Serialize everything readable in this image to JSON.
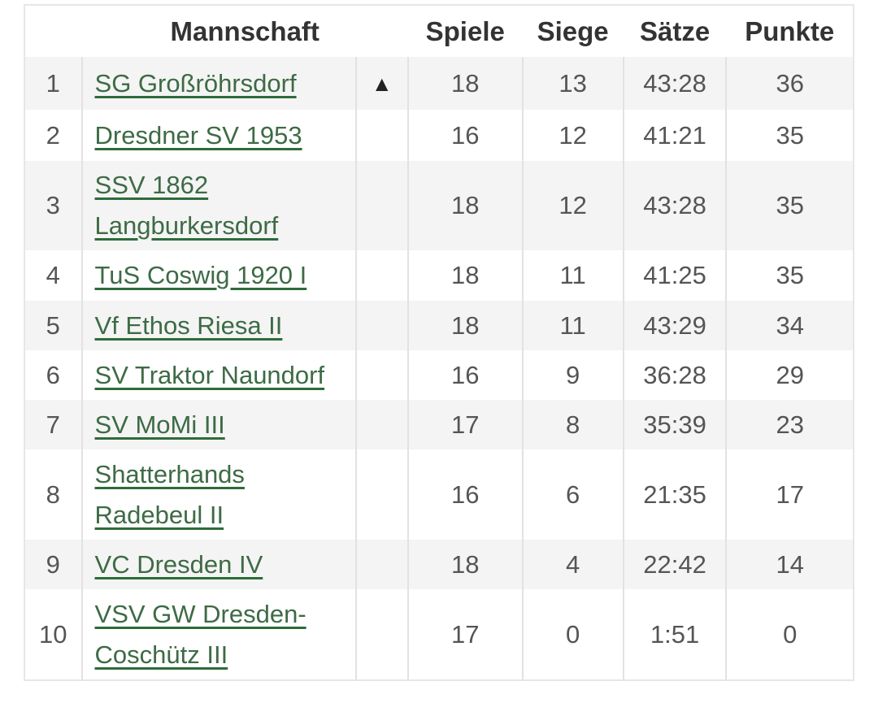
{
  "headers": {
    "rank": "",
    "team": "Mannschaft",
    "trend": "",
    "games": "Spiele",
    "wins": "Siege",
    "sets": "Sätze",
    "points": "Punkte"
  },
  "rows": [
    {
      "rank": "1",
      "team": "SG Großröhrsdorf",
      "trend": "▲",
      "games": "18",
      "wins": "13",
      "sets": "43:28",
      "points": "36"
    },
    {
      "rank": "2",
      "team": "Dresdner SV 1953",
      "trend": "",
      "games": "16",
      "wins": "12",
      "sets": "41:21",
      "points": "35"
    },
    {
      "rank": "3",
      "team": "SSV 1862 Langburkersdorf",
      "trend": "",
      "games": "18",
      "wins": "12",
      "sets": "43:28",
      "points": "35"
    },
    {
      "rank": "4",
      "team": "TuS Coswig 1920 I",
      "trend": "",
      "games": "18",
      "wins": "11",
      "sets": "41:25",
      "points": "35"
    },
    {
      "rank": "5",
      "team": "Vf Ethos Riesa II",
      "trend": "",
      "games": "18",
      "wins": "11",
      "sets": "43:29",
      "points": "34"
    },
    {
      "rank": "6",
      "team": "SV Traktor Naundorf",
      "trend": "",
      "games": "16",
      "wins": "9",
      "sets": "36:28",
      "points": "29"
    },
    {
      "rank": "7",
      "team": "SV MoMi III",
      "trend": "",
      "games": "17",
      "wins": "8",
      "sets": "35:39",
      "points": "23"
    },
    {
      "rank": "8",
      "team": "Shatterhands Radebeul II",
      "trend": "",
      "games": "16",
      "wins": "6",
      "sets": "21:35",
      "points": "17"
    },
    {
      "rank": "9",
      "team": "VC Dresden IV",
      "trend": "",
      "games": "18",
      "wins": "4",
      "sets": "22:42",
      "points": "14"
    },
    {
      "rank": "10",
      "team": "VSV GW Dresden-Coschütz III",
      "trend": "",
      "games": "17",
      "wins": "0",
      "sets": "1:51",
      "points": "0"
    }
  ]
}
